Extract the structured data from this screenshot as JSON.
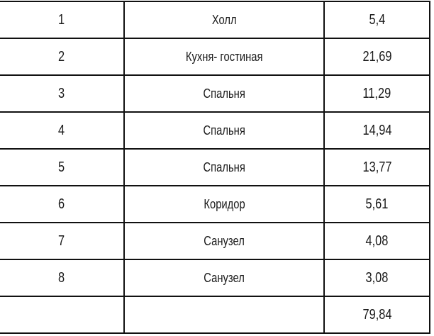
{
  "rows": [
    {
      "num": "1",
      "name": "Холл",
      "area": "5,4"
    },
    {
      "num": "2",
      "name": "Кухня- гостиная",
      "area": "21,69"
    },
    {
      "num": "3",
      "name": "Спальня",
      "area": "11,29"
    },
    {
      "num": "4",
      "name": "Спальня",
      "area": "14,94"
    },
    {
      "num": "5",
      "name": "Спальня",
      "area": "13,77"
    },
    {
      "num": "6",
      "name": "Коридор",
      "area": "5,61"
    },
    {
      "num": "7",
      "name": "Санузел",
      "area": "4,08"
    },
    {
      "num": "8",
      "name": "Санузел",
      "area": "3,08"
    }
  ],
  "total": {
    "num": "",
    "name": "",
    "area": "79,84"
  }
}
